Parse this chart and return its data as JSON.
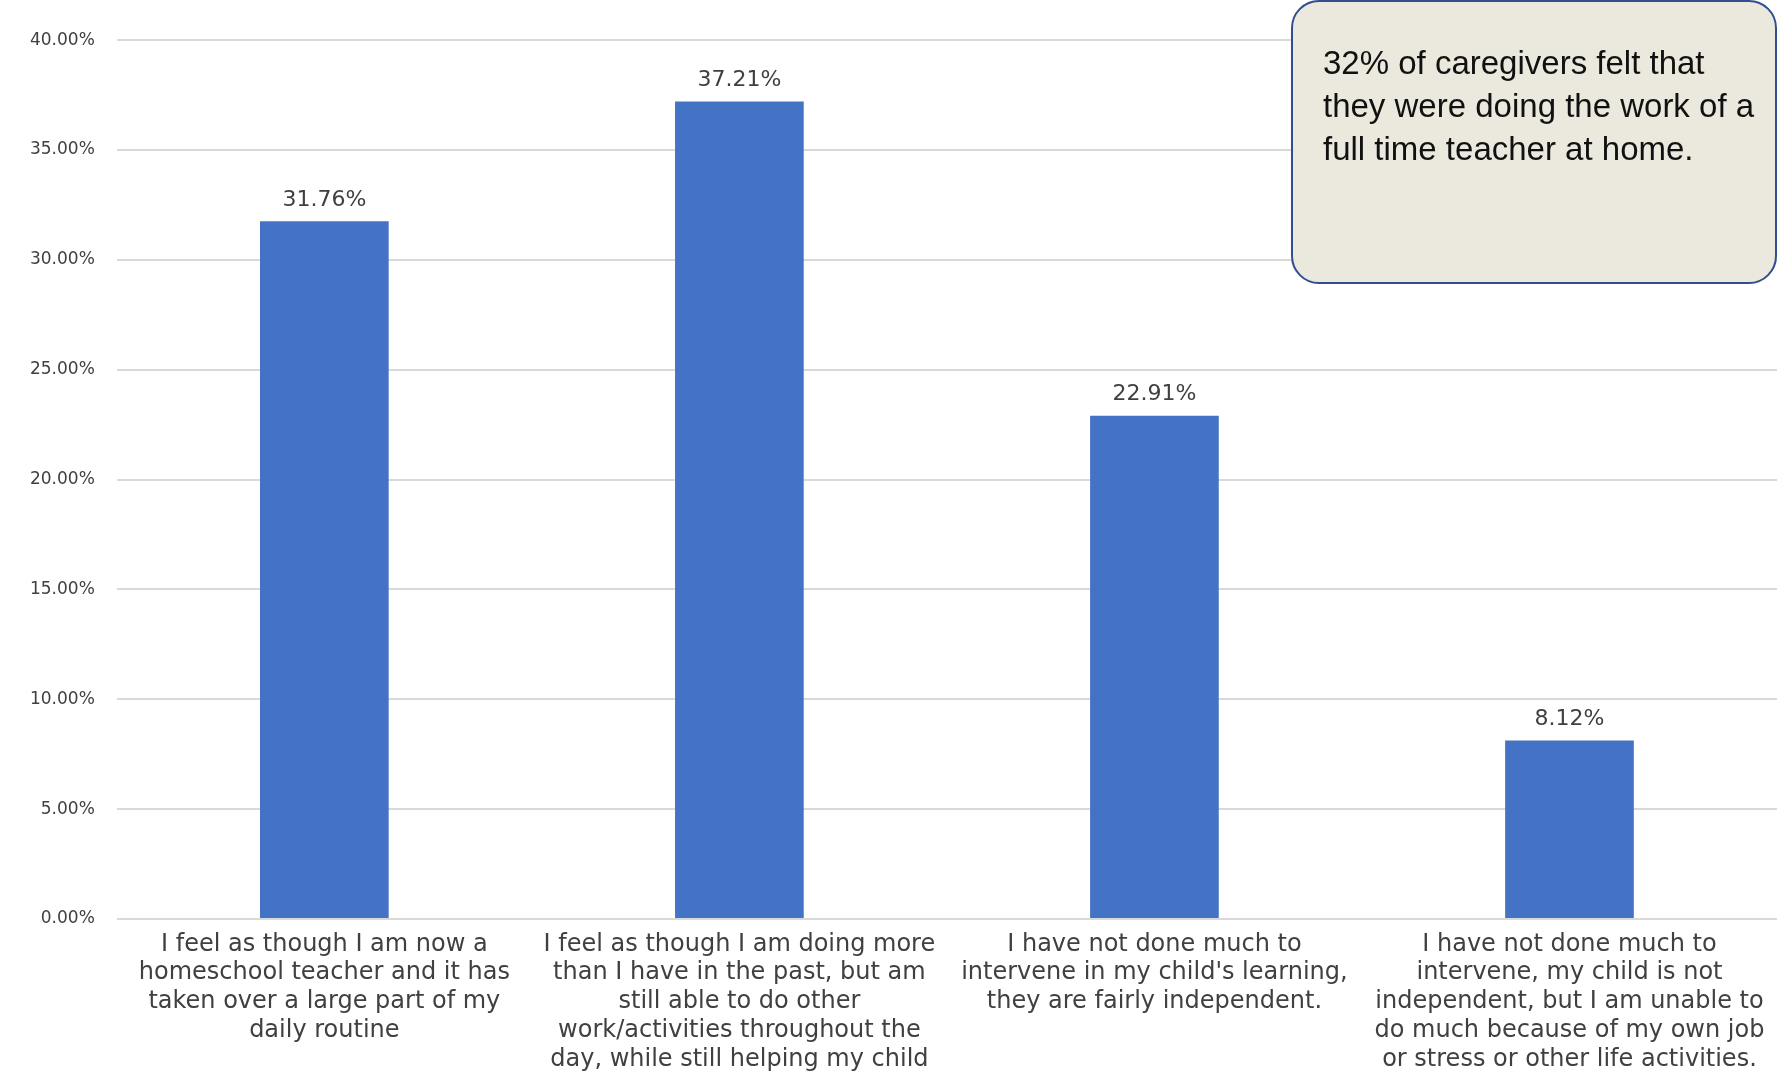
{
  "chart_data": {
    "type": "bar",
    "categories": [
      "I feel as though I am now a homeschool teacher and it has taken over a large part of my daily routine",
      "I feel as though I am doing more than I have in the past, but am still able to do other work/activities throughout the day, while still helping my child",
      "I have not done much to intervene in my child's learning, they are fairly independent.",
      "I have not done much to intervene, my child is not independent, but I am unable to do much because of my own job or stress or other life activities."
    ],
    "values": [
      31.76,
      37.21,
      22.91,
      8.12
    ],
    "color": "#4472c4",
    "ylim": [
      0,
      40
    ],
    "yticks": [
      {
        "value": 0,
        "label": "0.00%"
      },
      {
        "value": 5,
        "label": "5.00%"
      },
      {
        "value": 10,
        "label": "10.00%"
      },
      {
        "value": 15,
        "label": "15.00%"
      },
      {
        "value": 20,
        "label": "20.00%"
      },
      {
        "value": 25,
        "label": "25.00%"
      },
      {
        "value": 30,
        "label": "30.00%"
      },
      {
        "value": 35,
        "label": "35.00%"
      },
      {
        "value": 40,
        "label": "40.00%"
      }
    ],
    "value_labels": [
      "31.76%",
      "37.21%",
      "22.91%",
      "8.12%"
    ],
    "grid": "y",
    "legend": false,
    "annotations": [
      "32% of caregivers felt that they were doing the work of a full time teacher at home."
    ]
  }
}
